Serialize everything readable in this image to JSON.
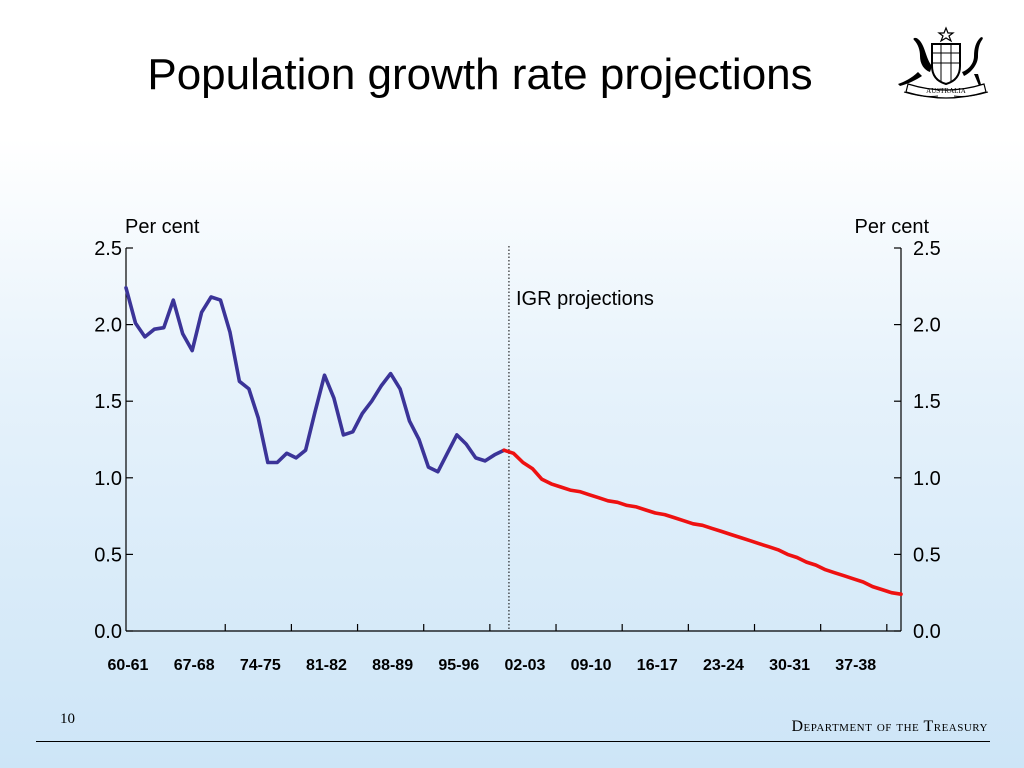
{
  "slide": {
    "title": "Population growth rate projections",
    "page_number": "10",
    "footer": "Department of the Treasury",
    "crest_text": "AUSTRALIA"
  },
  "chart_data": {
    "type": "line",
    "title": "",
    "ylabel_left": "Per cent",
    "ylabel_right": "Per cent",
    "ylim": [
      0,
      2.5
    ],
    "yticks": [
      "0.0",
      "0.5",
      "1.0",
      "1.5",
      "2.0",
      "2.5"
    ],
    "xlim": [
      1960,
      2042
    ],
    "categories": [
      "60-61",
      "67-68",
      "74-75",
      "81-82",
      "88-89",
      "95-96",
      "02-03",
      "09-10",
      "16-17",
      "23-24",
      "30-31",
      "37-38"
    ],
    "annotation": {
      "label": "IGR projections",
      "x": 2002
    },
    "colors": {
      "historical": "#3b3498",
      "projection": "#ee1111"
    },
    "series": [
      {
        "name": "",
        "values": [
          [
            1960,
            2.24
          ],
          [
            1961,
            2.01
          ],
          [
            1962,
            1.92
          ],
          [
            1963,
            1.97
          ],
          [
            1964,
            1.98
          ],
          [
            1965,
            2.16
          ],
          [
            1966,
            1.94
          ],
          [
            1967,
            1.83
          ],
          [
            1968,
            2.08
          ],
          [
            1969,
            2.18
          ],
          [
            1970,
            2.16
          ],
          [
            1971,
            1.95
          ],
          [
            1972,
            1.63
          ],
          [
            1973,
            1.58
          ],
          [
            1974,
            1.39
          ],
          [
            1975,
            1.1
          ],
          [
            1976,
            1.1
          ],
          [
            1977,
            1.16
          ],
          [
            1978,
            1.13
          ],
          [
            1979,
            1.18
          ],
          [
            1980,
            1.43
          ],
          [
            1981,
            1.67
          ],
          [
            1982,
            1.52
          ],
          [
            1983,
            1.28
          ],
          [
            1984,
            1.3
          ],
          [
            1985,
            1.42
          ],
          [
            1986,
            1.5
          ],
          [
            1987,
            1.6
          ],
          [
            1988,
            1.68
          ],
          [
            1989,
            1.58
          ],
          [
            1990,
            1.37
          ],
          [
            1991,
            1.25
          ],
          [
            1992,
            1.07
          ],
          [
            1993,
            1.04
          ],
          [
            1994,
            1.16
          ],
          [
            1995,
            1.28
          ],
          [
            1996,
            1.22
          ],
          [
            1997,
            1.13
          ],
          [
            1998,
            1.11
          ],
          [
            1999,
            1.15
          ],
          [
            2000,
            1.18
          ]
        ]
      },
      {
        "name": "",
        "values": [
          [
            2000,
            1.18
          ],
          [
            2001,
            1.16
          ],
          [
            2002,
            1.1
          ],
          [
            2003,
            1.06
          ],
          [
            2004,
            0.99
          ],
          [
            2005,
            0.96
          ],
          [
            2006,
            0.94
          ],
          [
            2007,
            0.92
          ],
          [
            2008,
            0.91
          ],
          [
            2009,
            0.89
          ],
          [
            2010,
            0.87
          ],
          [
            2011,
            0.85
          ],
          [
            2012,
            0.84
          ],
          [
            2013,
            0.82
          ],
          [
            2014,
            0.81
          ],
          [
            2015,
            0.79
          ],
          [
            2016,
            0.77
          ],
          [
            2017,
            0.76
          ],
          [
            2018,
            0.74
          ],
          [
            2019,
            0.72
          ],
          [
            2020,
            0.7
          ],
          [
            2021,
            0.69
          ],
          [
            2022,
            0.67
          ],
          [
            2023,
            0.65
          ],
          [
            2024,
            0.63
          ],
          [
            2025,
            0.61
          ],
          [
            2026,
            0.59
          ],
          [
            2027,
            0.57
          ],
          [
            2028,
            0.55
          ],
          [
            2029,
            0.53
          ],
          [
            2030,
            0.5
          ],
          [
            2031,
            0.48
          ],
          [
            2032,
            0.45
          ],
          [
            2033,
            0.43
          ],
          [
            2034,
            0.4
          ],
          [
            2035,
            0.38
          ],
          [
            2036,
            0.36
          ],
          [
            2037,
            0.34
          ],
          [
            2038,
            0.32
          ],
          [
            2039,
            0.29
          ],
          [
            2040,
            0.27
          ],
          [
            2041,
            0.25
          ],
          [
            2042,
            0.24
          ]
        ]
      }
    ]
  }
}
